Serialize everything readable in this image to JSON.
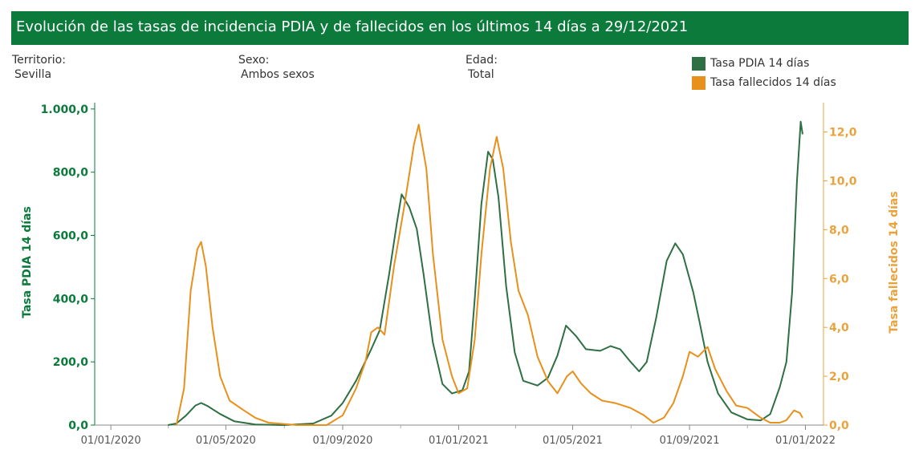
{
  "header": {
    "title": "Evolución de las tasas de incidencia PDIA y de fallecidos en los últimos 14 días a 29/12/2021"
  },
  "filters": [
    {
      "label": "Territorio:",
      "value": "Sevilla"
    },
    {
      "label": "Sexo:",
      "value": "Ambos sexos"
    },
    {
      "label": "Edad:",
      "value": "Total"
    }
  ],
  "colors": {
    "pdia": "#2e7043",
    "fallecidos": "#e8901c",
    "axis_left": "#0b7a3b",
    "axis_right": "#e8a33d"
  },
  "chart_data": {
    "type": "line",
    "title": "Evolución de las tasas de incidencia PDIA y de fallecidos en los últimos 14 días a 29/12/2021",
    "x_ticks": [
      "01/01/2020",
      "01/05/2020",
      "01/09/2020",
      "01/01/2021",
      "01/05/2021",
      "01/09/2021",
      "01/01/2022"
    ],
    "x_range": [
      "2019-12-15",
      "2022-01-20"
    ],
    "y_left": {
      "label": "Tasa PDIA 14 días",
      "range": [
        0,
        1020
      ],
      "ticks": [
        "0,0",
        "200,0",
        "400,0",
        "600,0",
        "800,0",
        "1.000,0"
      ],
      "tick_values": [
        0,
        200,
        400,
        600,
        800,
        1000
      ]
    },
    "y_right": {
      "label": "Tasa fallecidos 14 días",
      "range": [
        0,
        13.2
      ],
      "ticks": [
        "0,0",
        "2,0",
        "4,0",
        "6,0",
        "8,0",
        "10,0",
        "12,0"
      ],
      "tick_values": [
        0,
        2,
        4,
        6,
        8,
        10,
        12
      ]
    },
    "legend_position": "top-right",
    "series": [
      {
        "name": "Tasa PDIA 14 días",
        "axis": "left",
        "points": [
          [
            "2020-03-01",
            0
          ],
          [
            "2020-03-10",
            5
          ],
          [
            "2020-03-20",
            30
          ],
          [
            "2020-03-30",
            62
          ],
          [
            "2020-04-05",
            70
          ],
          [
            "2020-04-12",
            60
          ],
          [
            "2020-04-25",
            35
          ],
          [
            "2020-05-10",
            12
          ],
          [
            "2020-06-01",
            2
          ],
          [
            "2020-07-01",
            0
          ],
          [
            "2020-08-01",
            5
          ],
          [
            "2020-08-20",
            30
          ],
          [
            "2020-09-01",
            70
          ],
          [
            "2020-09-15",
            140
          ],
          [
            "2020-10-01",
            240
          ],
          [
            "2020-10-10",
            300
          ],
          [
            "2020-10-20",
            480
          ],
          [
            "2020-10-28",
            640
          ],
          [
            "2020-11-02",
            730
          ],
          [
            "2020-11-10",
            690
          ],
          [
            "2020-11-18",
            620
          ],
          [
            "2020-11-25",
            480
          ],
          [
            "2020-12-05",
            260
          ],
          [
            "2020-12-15",
            130
          ],
          [
            "2020-12-25",
            100
          ],
          [
            "2021-01-05",
            110
          ],
          [
            "2021-01-12",
            170
          ],
          [
            "2021-01-18",
            400
          ],
          [
            "2021-01-25",
            700
          ],
          [
            "2021-02-01",
            865
          ],
          [
            "2021-02-06",
            840
          ],
          [
            "2021-02-12",
            720
          ],
          [
            "2021-02-20",
            440
          ],
          [
            "2021-03-01",
            230
          ],
          [
            "2021-03-10",
            140
          ],
          [
            "2021-03-25",
            125
          ],
          [
            "2021-04-05",
            150
          ],
          [
            "2021-04-15",
            220
          ],
          [
            "2021-04-24",
            315
          ],
          [
            "2021-05-05",
            280
          ],
          [
            "2021-05-15",
            240
          ],
          [
            "2021-05-30",
            235
          ],
          [
            "2021-06-10",
            250
          ],
          [
            "2021-06-20",
            240
          ],
          [
            "2021-07-01",
            200
          ],
          [
            "2021-07-10",
            170
          ],
          [
            "2021-07-18",
            200
          ],
          [
            "2021-07-28",
            340
          ],
          [
            "2021-08-08",
            520
          ],
          [
            "2021-08-17",
            575
          ],
          [
            "2021-08-25",
            540
          ],
          [
            "2021-09-05",
            420
          ],
          [
            "2021-09-12",
            320
          ],
          [
            "2021-09-20",
            200
          ],
          [
            "2021-10-01",
            100
          ],
          [
            "2021-10-15",
            40
          ],
          [
            "2021-11-01",
            18
          ],
          [
            "2021-11-15",
            15
          ],
          [
            "2021-11-25",
            35
          ],
          [
            "2021-12-05",
            120
          ],
          [
            "2021-12-12",
            200
          ],
          [
            "2021-12-18",
            420
          ],
          [
            "2021-12-23",
            770
          ],
          [
            "2021-12-27",
            960
          ],
          [
            "2021-12-29",
            920
          ]
        ]
      },
      {
        "name": "Tasa fallecidos 14 días",
        "axis": "right",
        "points": [
          [
            "2020-03-10",
            0
          ],
          [
            "2020-03-18",
            1.5
          ],
          [
            "2020-03-25",
            5.5
          ],
          [
            "2020-04-01",
            7.2
          ],
          [
            "2020-04-05",
            7.5
          ],
          [
            "2020-04-10",
            6.5
          ],
          [
            "2020-04-17",
            4
          ],
          [
            "2020-04-25",
            2
          ],
          [
            "2020-05-05",
            1
          ],
          [
            "2020-05-20",
            0.6
          ],
          [
            "2020-06-01",
            0.3
          ],
          [
            "2020-06-15",
            0.1
          ],
          [
            "2020-07-15",
            0
          ],
          [
            "2020-08-15",
            0
          ],
          [
            "2020-09-01",
            0.4
          ],
          [
            "2020-09-15",
            1.5
          ],
          [
            "2020-09-25",
            2.6
          ],
          [
            "2020-10-01",
            3.8
          ],
          [
            "2020-10-08",
            4
          ],
          [
            "2020-10-15",
            3.7
          ],
          [
            "2020-10-25",
            6.5
          ],
          [
            "2020-11-05",
            9
          ],
          [
            "2020-11-15",
            11.5
          ],
          [
            "2020-11-20",
            12.3
          ],
          [
            "2020-11-28",
            10.5
          ],
          [
            "2020-12-05",
            7
          ],
          [
            "2020-12-15",
            3.5
          ],
          [
            "2020-12-25",
            2
          ],
          [
            "2021-01-01",
            1.3
          ],
          [
            "2021-01-10",
            1.5
          ],
          [
            "2021-01-18",
            3.5
          ],
          [
            "2021-01-25",
            7
          ],
          [
            "2021-02-03",
            10.5
          ],
          [
            "2021-02-10",
            11.8
          ],
          [
            "2021-02-17",
            10.5
          ],
          [
            "2021-02-25",
            7.5
          ],
          [
            "2021-03-05",
            5.5
          ],
          [
            "2021-03-15",
            4.5
          ],
          [
            "2021-03-25",
            2.8
          ],
          [
            "2021-04-05",
            1.8
          ],
          [
            "2021-04-15",
            1.3
          ],
          [
            "2021-04-25",
            2
          ],
          [
            "2021-05-01",
            2.2
          ],
          [
            "2021-05-10",
            1.7
          ],
          [
            "2021-05-20",
            1.3
          ],
          [
            "2021-06-01",
            1
          ],
          [
            "2021-06-15",
            0.9
          ],
          [
            "2021-07-01",
            0.7
          ],
          [
            "2021-07-15",
            0.4
          ],
          [
            "2021-07-25",
            0.1
          ],
          [
            "2021-08-05",
            0.3
          ],
          [
            "2021-08-15",
            0.9
          ],
          [
            "2021-08-25",
            2
          ],
          [
            "2021-09-01",
            3
          ],
          [
            "2021-09-10",
            2.8
          ],
          [
            "2021-09-20",
            3.2
          ],
          [
            "2021-09-28",
            2.3
          ],
          [
            "2021-10-10",
            1.4
          ],
          [
            "2021-10-20",
            0.8
          ],
          [
            "2021-11-01",
            0.7
          ],
          [
            "2021-11-15",
            0.3
          ],
          [
            "2021-11-25",
            0.1
          ],
          [
            "2021-12-05",
            0.1
          ],
          [
            "2021-12-12",
            0.2
          ],
          [
            "2021-12-20",
            0.6
          ],
          [
            "2021-12-26",
            0.5
          ],
          [
            "2021-12-29",
            0.3
          ]
        ]
      }
    ]
  }
}
